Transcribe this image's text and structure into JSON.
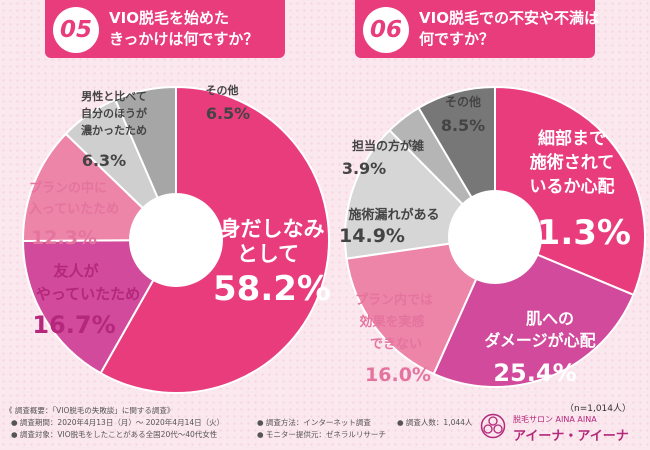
{
  "q05": {
    "number": "05",
    "line1": "VIO脱毛を始めた",
    "line2": "きっかけは何ですか？"
  },
  "q06": {
    "number": "06",
    "line1": "VIO脱毛での不安や不満は",
    "line2": "何ですか？"
  },
  "colors": {
    "accent": "#e83c7d",
    "pink_light": "#ed85a8",
    "purple": "#d14a9c",
    "gray_dark": "#777777",
    "gray_mid": "#a6a6a6",
    "gray_light": "#d0d0d0"
  },
  "chart_data": [
    {
      "type": "pie",
      "title": "VIO脱毛を始めたきっかけは何ですか？",
      "slices": [
        {
          "label": "身だしなみとして",
          "value": 58.2,
          "color": "#e83c7d"
        },
        {
          "label": "友人がやっていたため",
          "value": 16.7,
          "color": "#d14a9c"
        },
        {
          "label": "プランの中に入っていたため",
          "value": 12.3,
          "color": "#ed85a8"
        },
        {
          "label": "男性と比べて自分のほうが濃かったため",
          "value": 6.3,
          "color": "#cfcfcf"
        },
        {
          "label": "その他",
          "value": 6.5,
          "color": "#a6a6a6"
        }
      ]
    },
    {
      "type": "pie",
      "title": "VIO脱毛での不安や不満は何ですか？",
      "slices": [
        {
          "label": "細部まで施術されているか心配",
          "value": 31.3,
          "color": "#e83c7d"
        },
        {
          "label": "肌へのダメージが心配",
          "value": 25.4,
          "color": "#d14a9c"
        },
        {
          "label": "プラン内では効果を実感できない",
          "value": 16.0,
          "color": "#ed85a8"
        },
        {
          "label": "施術漏れがある",
          "value": 14.9,
          "color": "#d6d6d6"
        },
        {
          "label": "担当の方が雑",
          "value": 3.9,
          "color": "#b5b5b5"
        },
        {
          "label": "その他",
          "value": 8.5,
          "color": "#777777"
        }
      ]
    }
  ],
  "labels05": {
    "main_l1": "身だしなみ",
    "main_l2": "として",
    "main_pct": "58.2%",
    "friend_l1": "友人が",
    "friend_l2": "やっていたため",
    "friend_pct": "16.7%",
    "plan_l1": "プランの中に",
    "plan_l2": "入っていたため",
    "plan_pct": "12.3%",
    "male_l1": "男性と比べて",
    "male_l2": "自分のほうが",
    "male_l3": "濃かったため",
    "male_pct": "6.3%",
    "other_l1": "その他",
    "other_pct": "6.5%"
  },
  "labels06": {
    "detail_l1": "細部まで",
    "detail_l2": "施術されて",
    "detail_l3": "いるか心配",
    "detail_pct": "31.3%",
    "skin_l1": "肌への",
    "skin_l2": "ダメージが心配",
    "skin_pct": "25.4%",
    "effect_l1": "プラン内では",
    "effect_l2": "効果を実感",
    "effect_l3": "できない",
    "effect_pct": "16.0%",
    "miss_l1": "施術漏れがある",
    "miss_pct": "14.9%",
    "rough_l1": "担当の方が雑",
    "rough_pct": "3.9%",
    "other_l1": "その他",
    "other_pct": "8.5%"
  },
  "footer": {
    "summary": "《 調査概要：「VIO脱毛の失敗談」に関する調査》",
    "period": "● 調査期間：2020年4月13日（月）～ 2020年4月14日（火）",
    "target": "● 調査対象：VIO脱毛をしたことがある全国20代～40代女性",
    "method": "● 調査方法：インターネット調査",
    "provider": "● モニター提供元：ゼネラルリサーチ",
    "people": "● 調査人数：1,044人",
    "n": "（n=1,014人）"
  },
  "brand": {
    "small": "脱毛サロン AINA AINA",
    "big": "アイーナ・アイーナ"
  }
}
